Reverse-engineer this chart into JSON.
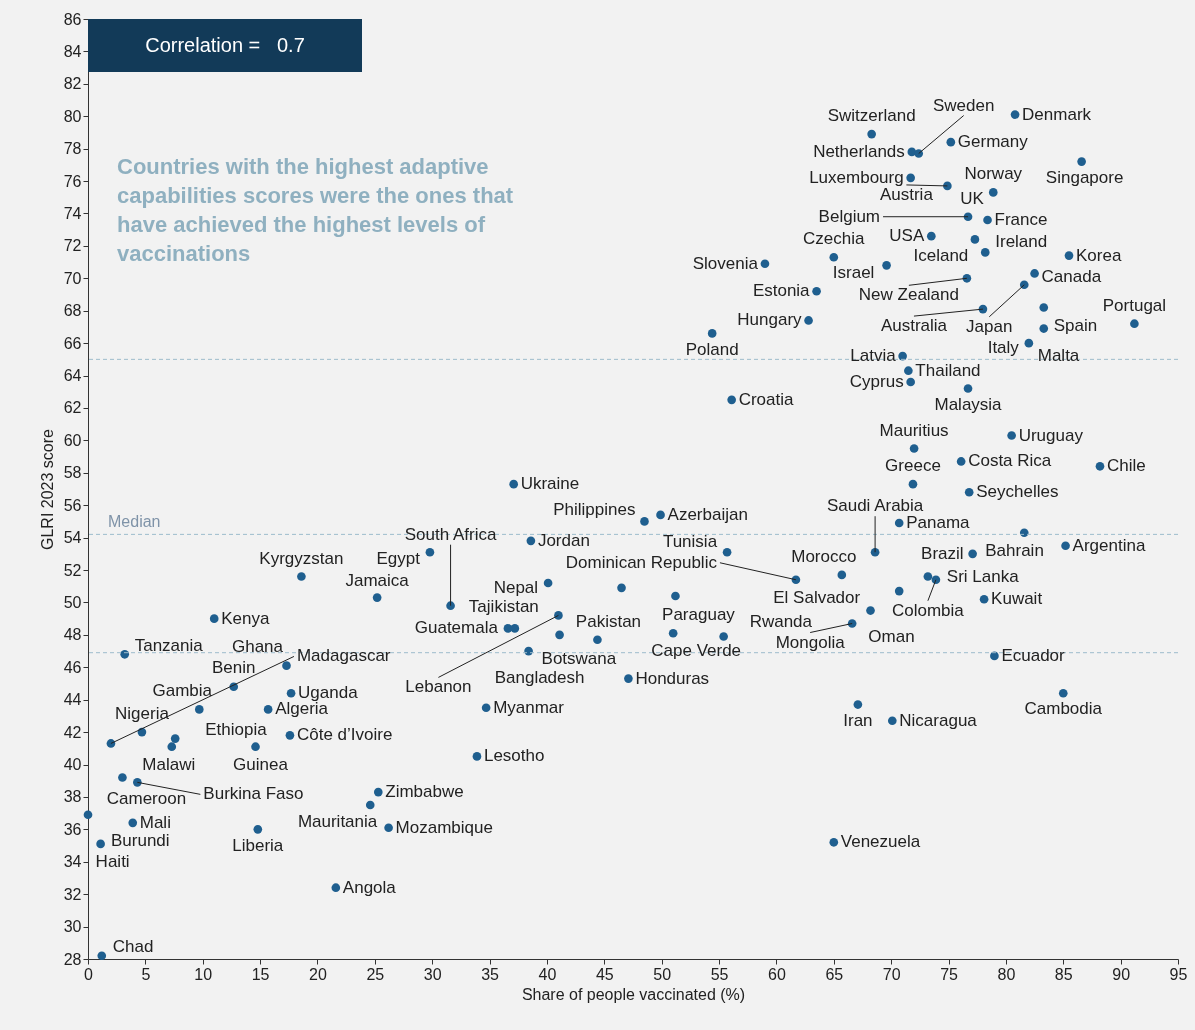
{
  "chart_data": {
    "type": "scatter",
    "xlabel": "Share of people vaccinated (%)",
    "ylabel": "GLRI 2023 score",
    "xlim": [
      0,
      95
    ],
    "ylim": [
      28,
      86
    ],
    "xticks": [
      0,
      5,
      10,
      15,
      20,
      25,
      30,
      35,
      40,
      45,
      50,
      55,
      60,
      65,
      70,
      75,
      80,
      85,
      90,
      95
    ],
    "yticks": [
      28,
      30,
      32,
      34,
      36,
      38,
      40,
      42,
      44,
      46,
      48,
      50,
      52,
      54,
      56,
      58,
      60,
      62,
      64,
      66,
      68,
      70,
      72,
      74,
      76,
      78,
      80,
      82,
      84,
      86
    ],
    "color": "#1f5f8f",
    "marker": "circle",
    "x": [
      68.3,
      71.8,
      72.4,
      80.8,
      75.2,
      86.6,
      71.7,
      74.9,
      78.9,
      76.7,
      78.4,
      73.5,
      77.3,
      78.2,
      85.5,
      65.0,
      59.0,
      69.6,
      76.6,
      82.5,
      81.6,
      63.5,
      78.0,
      83.3,
      83.3,
      91.2,
      62.8,
      54.4,
      82.0,
      71.0,
      71.5,
      71.7,
      76.7,
      56.1,
      72.0,
      80.5,
      76.1,
      88.2,
      71.9,
      76.8,
      48.5,
      49.9,
      68.6,
      70.7,
      81.6,
      77.1,
      85.2,
      38.6,
      55.7,
      65.7,
      61.7,
      73.2,
      73.9,
      70.7,
      78.1,
      68.2,
      66.6,
      55.4,
      51.0,
      51.2,
      79.0,
      85.0,
      67.1,
      70.1,
      65.0,
      37.1,
      40.1,
      41.0,
      41.1,
      44.4,
      38.4,
      47.1,
      31.6,
      29.8,
      18.6,
      25.2,
      11.0,
      36.6,
      37.2,
      3.2,
      17.3,
      2.0,
      12.7,
      9.7,
      17.7,
      15.7,
      4.7,
      7.6,
      7.3,
      14.6,
      17.6,
      34.7,
      33.9,
      3.0,
      4.3,
      25.3,
      24.6,
      0.0,
      3.9,
      26.2,
      14.8,
      1.1,
      21.6,
      1.2,
      46.5
    ],
    "values": [
      78.9,
      77.8,
      77.7,
      80.1,
      78.4,
      77.2,
      76.2,
      75.7,
      75.3,
      73.8,
      73.6,
      72.6,
      72.4,
      71.6,
      71.4,
      71.3,
      70.9,
      70.8,
      70.0,
      70.3,
      69.6,
      69.2,
      68.1,
      68.2,
      66.9,
      67.2,
      67.4,
      66.6,
      66.0,
      65.2,
      64.3,
      63.6,
      63.2,
      62.5,
      59.5,
      60.3,
      58.7,
      58.4,
      57.3,
      56.8,
      55.0,
      55.4,
      53.1,
      54.9,
      54.3,
      53.0,
      53.5,
      53.8,
      53.1,
      51.7,
      51.4,
      51.6,
      51.4,
      50.7,
      50.2,
      49.5,
      48.7,
      47.9,
      48.1,
      50.4,
      46.7,
      44.4,
      43.7,
      42.7,
      35.2,
      57.3,
      51.2,
      49.2,
      48.0,
      47.7,
      47.0,
      45.3,
      49.8,
      53.1,
      51.6,
      50.3,
      49.0,
      48.4,
      48.4,
      46.8,
      46.1,
      41.3,
      44.8,
      43.4,
      44.4,
      43.4,
      42.0,
      41.6,
      41.1,
      41.1,
      41.8,
      43.5,
      40.5,
      39.2,
      38.9,
      38.3,
      37.5,
      36.9,
      36.4,
      36.1,
      36.0,
      35.1,
      32.4,
      28.2,
      50.9
    ],
    "ref_lines": [
      {
        "axis": "y",
        "value": 65.0,
        "color": "#9dbccc",
        "line_style": "dashed"
      },
      {
        "axis": "y",
        "value": 54.2,
        "label": "Median",
        "color": "#9dbccc",
        "line_style": "dashed"
      },
      {
        "axis": "y",
        "value": 46.9,
        "color": "#9dbccc",
        "line_style": "dashed"
      }
    ],
    "annotations": [
      "Correlation =   0.7",
      "Countries with the highest adaptive capabilities scores were the ones that have achieved the highest levels of vaccinations",
      {
        "text": "Switzerland",
        "x": 68.3,
        "y": 78.9
      },
      {
        "text": "Netherlands",
        "x": 71.8,
        "y": 77.8
      },
      {
        "text": "Sweden",
        "x": 72.4,
        "y": 77.7
      },
      {
        "text": "Denmark",
        "x": 80.8,
        "y": 80.1
      },
      {
        "text": "Germany",
        "x": 75.2,
        "y": 78.4
      },
      {
        "text": "Singapore",
        "x": 86.6,
        "y": 77.2
      },
      {
        "text": "Luxembourg",
        "x": 71.7,
        "y": 76.2
      },
      {
        "text": "Austria",
        "x": 74.9,
        "y": 75.7
      },
      {
        "text": "Norway",
        "x": 78.9,
        "y": 75.3
      },
      {
        "text": "UK",
        "x": 76.7,
        "y": 73.7
      },
      {
        "text": "Belgium",
        "x": 76.7,
        "y": 73.8
      },
      {
        "text": "France",
        "x": 78.4,
        "y": 73.6
      },
      {
        "text": "USA",
        "x": 73.5,
        "y": 72.6
      },
      {
        "text": "Iceland",
        "x": 77.3,
        "y": 72.4
      },
      {
        "text": "Ireland",
        "x": 78.2,
        "y": 71.6
      },
      {
        "text": "Korea",
        "x": 85.5,
        "y": 71.4
      },
      {
        "text": "Czechia",
        "x": 65.0,
        "y": 71.3
      },
      {
        "text": "Slovenia",
        "x": 59.0,
        "y": 70.9
      },
      {
        "text": "Israel",
        "x": 69.6,
        "y": 70.8
      },
      {
        "text": "New Zealand",
        "x": 76.6,
        "y": 70.0
      },
      {
        "text": "Canada",
        "x": 82.5,
        "y": 70.3
      },
      {
        "text": "Japan",
        "x": 81.6,
        "y": 69.6
      },
      {
        "text": "Estonia",
        "x": 63.5,
        "y": 69.2
      },
      {
        "text": "Australia",
        "x": 78.0,
        "y": 68.1
      },
      {
        "text": "Spain",
        "x": 83.3,
        "y": 68.2
      },
      {
        "text": "Malta",
        "x": 83.3,
        "y": 66.9
      },
      {
        "text": "Portugal",
        "x": 91.2,
        "y": 67.2
      },
      {
        "text": "Hungary",
        "x": 62.8,
        "y": 67.4
      },
      {
        "text": "Poland",
        "x": 54.4,
        "y": 66.6
      },
      {
        "text": "Italy",
        "x": 82.0,
        "y": 66.0
      },
      {
        "text": "Latvia",
        "x": 71.0,
        "y": 65.2
      },
      {
        "text": "Thailand",
        "x": 71.5,
        "y": 64.3
      },
      {
        "text": "Cyprus",
        "x": 71.7,
        "y": 63.6
      },
      {
        "text": "Malaysia",
        "x": 76.7,
        "y": 63.2
      },
      {
        "text": "Croatia",
        "x": 56.1,
        "y": 62.5
      },
      {
        "text": "Mauritius",
        "x": 72.0,
        "y": 59.5
      },
      {
        "text": "Uruguay",
        "x": 80.5,
        "y": 60.3
      },
      {
        "text": "Costa Rica",
        "x": 76.1,
        "y": 58.7
      },
      {
        "text": "Chile",
        "x": 88.2,
        "y": 58.4
      },
      {
        "text": "Greece",
        "x": 71.9,
        "y": 57.3
      },
      {
        "text": "Seychelles",
        "x": 76.8,
        "y": 56.8
      },
      {
        "text": "Philippines",
        "x": 48.5,
        "y": 55.0
      },
      {
        "text": "Azerbaijan",
        "x": 49.9,
        "y": 55.4
      },
      {
        "text": "Saudi Arabia",
        "x": 68.6,
        "y": 53.1
      },
      {
        "text": "Panama",
        "x": 70.7,
        "y": 54.9
      },
      {
        "text": "Bahrain",
        "x": 81.6,
        "y": 54.3
      },
      {
        "text": "Brazil",
        "x": 77.1,
        "y": 53.0
      },
      {
        "text": "Argentina",
        "x": 85.2,
        "y": 53.5
      },
      {
        "text": "Jordan",
        "x": 38.6,
        "y": 53.8
      },
      {
        "text": "Tunisia",
        "x": 55.7,
        "y": 53.1
      },
      {
        "text": "Morocco",
        "x": 65.7,
        "y": 51.7
      },
      {
        "text": "Dominican Republic",
        "x": 61.7,
        "y": 51.4
      },
      {
        "text": "Sri Lanka",
        "x": 73.2,
        "y": 51.6
      },
      {
        "text": "Colombia",
        "x": 73.9,
        "y": 51.4
      },
      {
        "text": "El Salvador",
        "x": 70.7,
        "y": 50.7
      },
      {
        "text": "Kuwait",
        "x": 78.1,
        "y": 50.2
      },
      {
        "text": "Oman",
        "x": 68.2,
        "y": 49.5
      },
      {
        "text": "Mongolia",
        "x": 66.6,
        "y": 48.7
      },
      {
        "text": "Rwanda",
        "x": 55.4,
        "y": 47.9
      },
      {
        "text": "Cape Verde",
        "x": 51.0,
        "y": 48.1
      },
      {
        "text": "Paraguay",
        "x": 51.2,
        "y": 50.4
      },
      {
        "text": "Ecuador",
        "x": 79.0,
        "y": 46.7
      },
      {
        "text": "Cambodia",
        "x": 85.0,
        "y": 44.4
      },
      {
        "text": "Iran",
        "x": 67.1,
        "y": 43.7
      },
      {
        "text": "Nicaragua",
        "x": 70.1,
        "y": 42.7
      },
      {
        "text": "Venezuela",
        "x": 65.0,
        "y": 35.2
      },
      {
        "text": "Ukraine",
        "x": 37.1,
        "y": 57.3
      },
      {
        "text": "Nepal",
        "x": 40.1,
        "y": 51.2
      },
      {
        "text": "Lebanon",
        "x": 41.0,
        "y": 49.2
      },
      {
        "text": "Botswana",
        "x": 41.1,
        "y": 48.0
      },
      {
        "text": "Pakistan",
        "x": 44.4,
        "y": 47.7
      },
      {
        "text": "Bangladesh",
        "x": 38.4,
        "y": 47.0
      },
      {
        "text": "Honduras",
        "x": 47.1,
        "y": 45.3
      },
      {
        "text": "South Africa",
        "x": 31.6,
        "y": 49.8
      },
      {
        "text": "Egypt",
        "x": 29.8,
        "y": 53.1
      },
      {
        "text": "Kyrgyzstan",
        "x": 18.6,
        "y": 51.6
      },
      {
        "text": "Jamaica",
        "x": 25.2,
        "y": 50.3
      },
      {
        "text": "Kenya",
        "x": 11.0,
        "y": 49.0
      },
      {
        "text": "Guatemala",
        "x": 36.6,
        "y": 48.4
      },
      {
        "text": "Tajikistan",
        "x": 37.2,
        "y": 48.4
      },
      {
        "text": "Tanzania",
        "x": 3.2,
        "y": 46.8
      },
      {
        "text": "Ghana",
        "x": 17.3,
        "y": 46.1
      },
      {
        "text": "Madagascar",
        "x": 2.0,
        "y": 41.3
      },
      {
        "text": "Benin",
        "x": 12.7,
        "y": 44.8
      },
      {
        "text": "Gambia",
        "x": 9.7,
        "y": 43.4
      },
      {
        "text": "Uganda",
        "x": 17.7,
        "y": 44.4
      },
      {
        "text": "Algeria",
        "x": 15.7,
        "y": 43.4
      },
      {
        "text": "Nigeria",
        "x": 4.7,
        "y": 42.0
      },
      {
        "text": "Ethiopia",
        "x": 7.6,
        "y": 41.6
      },
      {
        "text": "Malawi",
        "x": 7.3,
        "y": 41.1
      },
      {
        "text": "Guinea",
        "x": 14.6,
        "y": 41.1
      },
      {
        "text": "Côte d’Ivoire",
        "x": 17.6,
        "y": 41.8
      },
      {
        "text": "Myanmar",
        "x": 34.7,
        "y": 43.5
      },
      {
        "text": "Lesotho",
        "x": 33.9,
        "y": 40.5
      },
      {
        "text": "Cameroon",
        "x": 3.0,
        "y": 39.2
      },
      {
        "text": "Burkina Faso",
        "x": 4.3,
        "y": 38.9
      },
      {
        "text": "Zimbabwe",
        "x": 25.3,
        "y": 38.3
      },
      {
        "text": "Mauritania",
        "x": 24.6,
        "y": 37.5
      },
      {
        "text": "Burundi",
        "x": 0.0,
        "y": 36.9
      },
      {
        "text": "Mali",
        "x": 3.9,
        "y": 36.4
      },
      {
        "text": "Mozambique",
        "x": 26.2,
        "y": 36.1
      },
      {
        "text": "Liberia",
        "x": 14.8,
        "y": 36.0
      },
      {
        "text": "Haiti",
        "x": 1.1,
        "y": 35.1
      },
      {
        "text": "Angola",
        "x": 21.6,
        "y": 32.4
      },
      {
        "text": "Chad",
        "x": 1.2,
        "y": 28.2
      }
    ]
  }
}
